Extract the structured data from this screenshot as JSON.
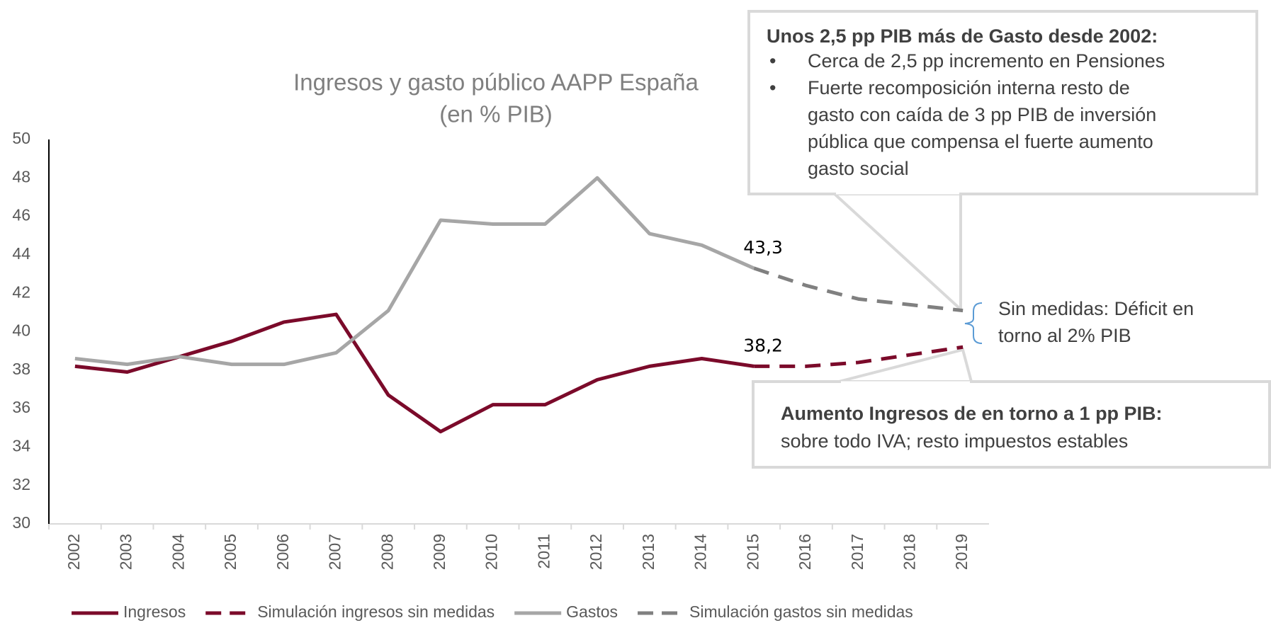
{
  "chart_data": {
    "type": "line",
    "title": "Ingresos y gasto público AAPP España",
    "subtitle": "(en % PIB)",
    "categories": [
      "2002",
      "2003",
      "2004",
      "2005",
      "2006",
      "2007",
      "2008",
      "2009",
      "2010",
      "2011",
      "2012",
      "2013",
      "2014",
      "2015",
      "2016",
      "2017",
      "2018",
      "2019"
    ],
    "series": [
      {
        "name": "Ingresos",
        "color": "#7b0a2a",
        "dashed": false,
        "values": [
          38.2,
          37.9,
          38.7,
          39.5,
          40.5,
          40.9,
          36.7,
          34.8,
          36.2,
          36.2,
          37.5,
          38.2,
          38.6,
          38.2,
          null,
          null,
          null,
          null
        ]
      },
      {
        "name": "Simulación ingresos sin medidas",
        "color": "#7b0a2a",
        "dashed": true,
        "values": [
          null,
          null,
          null,
          null,
          null,
          null,
          null,
          null,
          null,
          null,
          null,
          null,
          null,
          38.2,
          38.2,
          38.4,
          38.8,
          39.2
        ],
        "value_labels": [
          null,
          null,
          null,
          null,
          null,
          null,
          null,
          null,
          null,
          null,
          null,
          null,
          null,
          "38,2",
          null,
          null,
          null,
          null
        ]
      },
      {
        "name": "Gastos",
        "color": "#a6a6a6",
        "dashed": false,
        "values": [
          38.6,
          38.3,
          38.7,
          38.3,
          38.3,
          38.9,
          41.1,
          45.8,
          45.6,
          45.6,
          48.0,
          45.1,
          44.5,
          43.3,
          null,
          null,
          null,
          null
        ]
      },
      {
        "name": "Simulación gastos sin medidas",
        "color": "#808080",
        "dashed": true,
        "values": [
          null,
          null,
          null,
          null,
          null,
          null,
          null,
          null,
          null,
          null,
          null,
          null,
          null,
          43.3,
          42.4,
          41.7,
          41.4,
          41.1
        ],
        "value_labels": [
          null,
          null,
          null,
          null,
          null,
          null,
          null,
          null,
          null,
          null,
          null,
          null,
          null,
          "43,3",
          null,
          null,
          null,
          null
        ]
      }
    ],
    "ylim": [
      30,
      50
    ],
    "yticks": [
      30,
      32,
      34,
      36,
      38,
      40,
      42,
      44,
      46,
      48,
      50
    ],
    "grid": false,
    "legend": "bottom",
    "annotations": [
      {
        "title": "Unos 2,5 pp PIB más de Gasto desde 2002:",
        "bullets": [
          [
            "Cerca de 2,5 pp incremento en Pensiones"
          ],
          [
            "Fuerte recomposición interna resto de",
            "gasto con caída de 3 pp PIB de inversión",
            "pública que compensa el fuerte aumento",
            "gasto social"
          ]
        ]
      },
      {
        "lines": [
          "Sin medidas: Déficit en",
          "torno al 2% PIB"
        ]
      },
      {
        "title": "Aumento Ingresos de en torno a 1 pp PIB:",
        "text": "sobre todo IVA; resto impuestos estables"
      }
    ]
  }
}
